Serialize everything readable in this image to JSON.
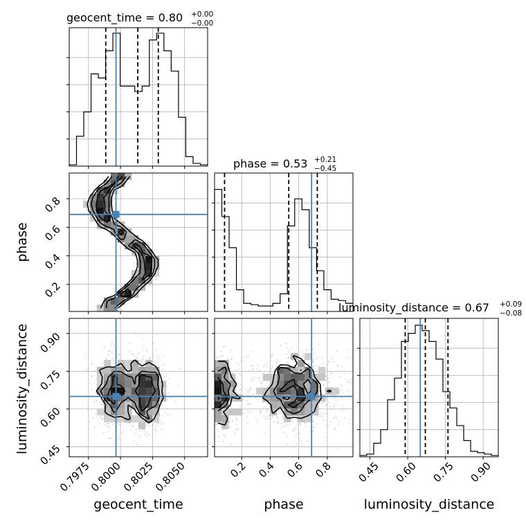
{
  "chart_data": {
    "type": "corner",
    "truth_color": "#4682b4",
    "params": [
      {
        "key": "geocent_time",
        "label": "geocent_time",
        "title": {
          "prefix": "geocent_time = ",
          "value": "0.80",
          "plus": "+0.00",
          "minus": "−0.00"
        },
        "range": [
          0.796,
          0.8068
        ],
        "ticks": [
          "0.7975",
          "0.8000",
          "0.8025",
          "0.8050"
        ],
        "tick_values": [
          0.7975,
          0.8,
          0.8025,
          0.805
        ],
        "truth": 0.79965,
        "quantiles": [
          0.79885,
          0.80135,
          0.80295
        ],
        "hist": [
          0.01,
          0.22,
          0.4,
          0.68,
          0.65,
          0.85,
          0.98,
          0.59,
          0.59,
          0.55,
          0.59,
          0.93,
          0.98,
          0.85,
          0.7,
          0.36,
          0.07,
          0.02,
          0.01
        ]
      },
      {
        "key": "phase",
        "label": "phase",
        "title": {
          "prefix": "phase = ",
          "value": "0.53",
          "plus": "+0.21",
          "minus": "−0.45"
        },
        "range": [
          0.01,
          0.98
        ],
        "ticks": [
          "0.2",
          "0.4",
          "0.6",
          "0.8"
        ],
        "tick_values": [
          0.2,
          0.4,
          0.6,
          0.8
        ],
        "truth": 0.69,
        "quantiles": [
          0.08,
          0.53,
          0.73
        ],
        "hist": [
          0.9,
          0.7,
          0.47,
          0.16,
          0.06,
          0.05,
          0.04,
          0.04,
          0.06,
          0.13,
          0.63,
          0.83,
          0.75,
          0.47,
          0.3,
          0.16,
          0.09,
          0.08,
          0.06
        ]
      },
      {
        "key": "luminosity_distance",
        "label": "luminosity_distance",
        "title": {
          "prefix": "luminosity_distance = ",
          "value": "0.67",
          "plus": "+0.09",
          "minus": "−0.08"
        },
        "range": [
          0.41,
          0.96
        ],
        "ticks": [
          "0.45",
          "0.60",
          "0.75",
          "0.90"
        ],
        "tick_values": [
          0.45,
          0.6,
          0.75,
          0.9
        ],
        "truth": 0.65,
        "quantiles": [
          0.59,
          0.67,
          0.76
        ],
        "hist": [
          0.01,
          0.02,
          0.1,
          0.2,
          0.42,
          0.58,
          0.85,
          0.91,
          0.97,
          0.93,
          0.85,
          0.72,
          0.48,
          0.36,
          0.23,
          0.12,
          0.04,
          0.03,
          0.02,
          0.01
        ]
      }
    ]
  }
}
